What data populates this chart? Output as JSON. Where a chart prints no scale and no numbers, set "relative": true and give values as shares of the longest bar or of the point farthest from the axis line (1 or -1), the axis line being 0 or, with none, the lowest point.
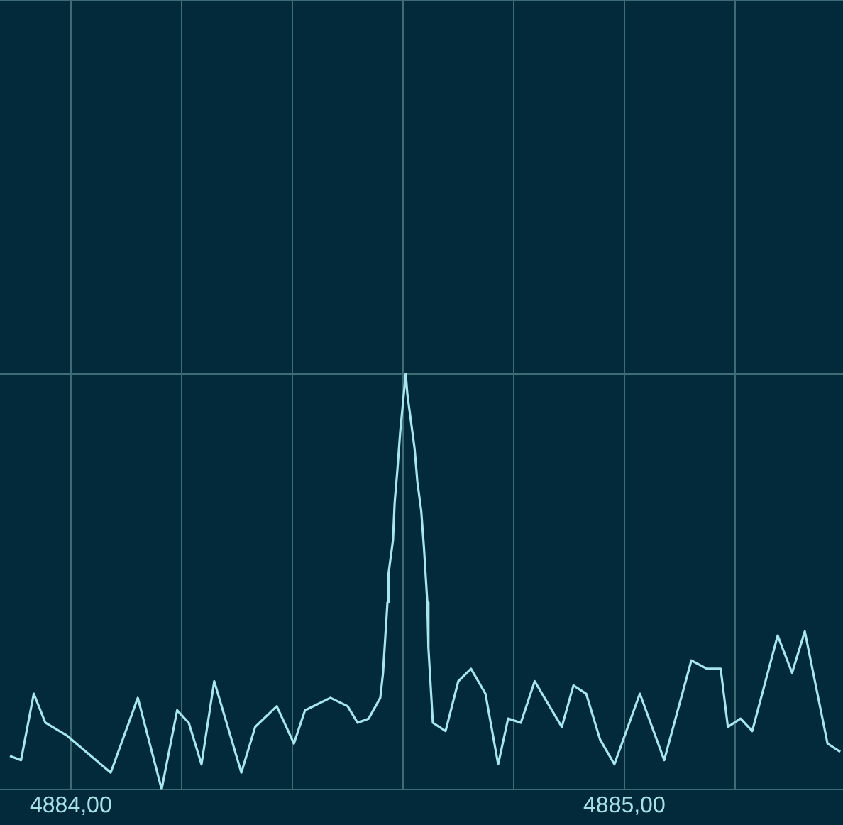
{
  "chart_data": {
    "type": "line",
    "relative": true,
    "grid": true,
    "legend": false,
    "marker": "none",
    "line_style": "solid",
    "xlim": [
      4883.872,
      4885.395
    ],
    "xticks": [
      {
        "value": 4884,
        "label": "4884,00"
      },
      {
        "value": 4884.2,
        "label": null
      },
      {
        "value": 4884.4,
        "label": null
      },
      {
        "value": 4884.6,
        "label": null
      },
      {
        "value": 4884.8,
        "label": null
      },
      {
        "value": 4885,
        "label": "4885,00"
      },
      {
        "value": 4885.2,
        "label": null
      }
    ],
    "series": [
      {
        "color": "#a8e6ee",
        "x": [
          4883.89,
          4883.91,
          4883.933,
          4883.954,
          4883.992,
          4884.072,
          4884.121,
          4884.164,
          4884.192,
          4884.213,
          4884.236,
          4884.259,
          4884.308,
          4884.333,
          4884.372,
          4884.403,
          4884.423,
          4884.469,
          4884.5,
          4884.518,
          4884.538,
          4884.559,
          4884.564,
          4884.572,
          4884.574,
          4884.582,
          4884.585,
          4884.59,
          4884.595,
          4884.605,
          4884.608,
          4884.615,
          4884.621,
          4884.626,
          4884.633,
          4884.638,
          4884.644,
          4884.646,
          4884.654,
          4884.677,
          4884.7,
          4884.723,
          4884.749,
          4884.772,
          4884.79,
          4884.813,
          4884.838,
          4884.887,
          4884.908,
          4884.931,
          4884.956,
          4884.982,
          4885.028,
          4885.072,
          4885.121,
          4885.149,
          4885.174,
          4885.187,
          4885.21,
          4885.231,
          4885.277,
          4885.303,
          4885.326,
          4885.367,
          4885.39
        ],
        "values": [
          0.08,
          0.07,
          0.23,
          0.16,
          0.13,
          0.04,
          0.22,
          0,
          0.19,
          0.16,
          0.06,
          0.26,
          0.04,
          0.15,
          0.2,
          0.11,
          0.19,
          0.22,
          0.2,
          0.16,
          0.17,
          0.22,
          0.28,
          0.45,
          0.52,
          0.6,
          0.69,
          0.77,
          0.86,
          1,
          0.95,
          0.88,
          0.82,
          0.74,
          0.67,
          0.58,
          0.45,
          0.34,
          0.16,
          0.14,
          0.26,
          0.29,
          0.23,
          0.06,
          0.17,
          0.16,
          0.26,
          0.15,
          0.25,
          0.23,
          0.12,
          0.06,
          0.23,
          0.07,
          0.31,
          0.29,
          0.29,
          0.15,
          0.17,
          0.14,
          0.37,
          0.28,
          0.38,
          0.11,
          0.09
        ]
      }
    ]
  }
}
